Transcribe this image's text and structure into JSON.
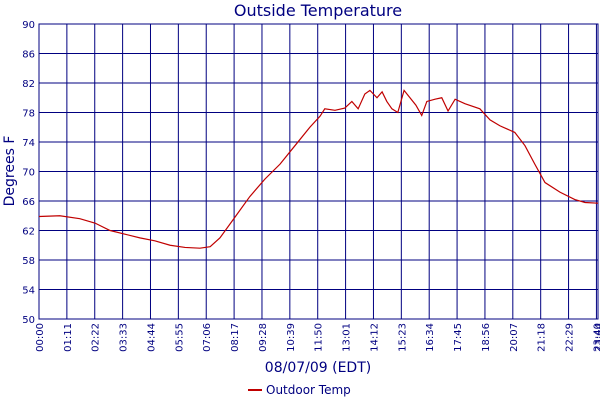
{
  "chart_data": {
    "type": "line",
    "title": "Outside Temperature",
    "x_label": "08/07/09 (EDT)",
    "y_label": "Degrees F",
    "x": [
      0,
      53,
      104,
      143,
      181,
      219,
      257,
      295,
      334,
      372,
      410,
      436,
      461,
      499,
      537,
      576,
      614,
      652,
      690,
      716,
      728,
      754,
      779,
      797,
      813,
      830,
      843,
      861,
      874,
      886,
      899,
      914,
      930,
      945,
      960,
      975,
      988,
      1009,
      1026,
      1042,
      1060,
      1085,
      1123,
      1149,
      1174,
      1212,
      1238,
      1263,
      1289,
      1327,
      1365,
      1391,
      1424
    ],
    "series": [
      {
        "name": "Outdoor Temp",
        "color": "#c00000",
        "values": [
          63.9,
          64.0,
          63.6,
          63.0,
          62.0,
          61.5,
          61.0,
          60.6,
          60.0,
          59.7,
          59.6,
          59.8,
          61.0,
          63.8,
          66.6,
          69.0,
          71.0,
          73.5,
          76.0,
          77.5,
          78.5,
          78.3,
          78.6,
          79.5,
          78.5,
          80.5,
          81.0,
          80.0,
          80.8,
          79.5,
          78.5,
          78.0,
          81.0,
          80.0,
          79.0,
          77.6,
          79.5,
          79.8,
          80.0,
          78.2,
          79.8,
          79.2,
          78.5,
          77.0,
          76.2,
          75.3,
          73.5,
          71.0,
          68.5,
          67.2,
          66.2,
          65.8,
          65.7
        ]
      }
    ],
    "xlim": [
      0,
      1424
    ],
    "xticks": [
      {
        "value": 0,
        "label": "00:00"
      },
      {
        "value": 71,
        "label": "01:11"
      },
      {
        "value": 142,
        "label": "02:22"
      },
      {
        "value": 213,
        "label": "03:33"
      },
      {
        "value": 284,
        "label": "04:44"
      },
      {
        "value": 355,
        "label": "05:55"
      },
      {
        "value": 426,
        "label": "07:06"
      },
      {
        "value": 497,
        "label": "08:17"
      },
      {
        "value": 568,
        "label": "09:28"
      },
      {
        "value": 639,
        "label": "10:39"
      },
      {
        "value": 710,
        "label": "11:50"
      },
      {
        "value": 781,
        "label": "13:01"
      },
      {
        "value": 852,
        "label": "14:12"
      },
      {
        "value": 923,
        "label": "15:23"
      },
      {
        "value": 994,
        "label": "16:34"
      },
      {
        "value": 1065,
        "label": "17:45"
      },
      {
        "value": 1136,
        "label": "18:56"
      },
      {
        "value": 1207,
        "label": "20:07"
      },
      {
        "value": 1278,
        "label": "21:18"
      },
      {
        "value": 1349,
        "label": "22:29"
      },
      {
        "value": 1420,
        "label": "23:40"
      },
      {
        "value": 1424,
        "label": "23:44"
      }
    ],
    "ylim": [
      50,
      90
    ],
    "yticks": [
      50,
      54,
      58,
      62,
      66,
      70,
      74,
      78,
      82,
      86,
      90
    ],
    "grid": true
  }
}
